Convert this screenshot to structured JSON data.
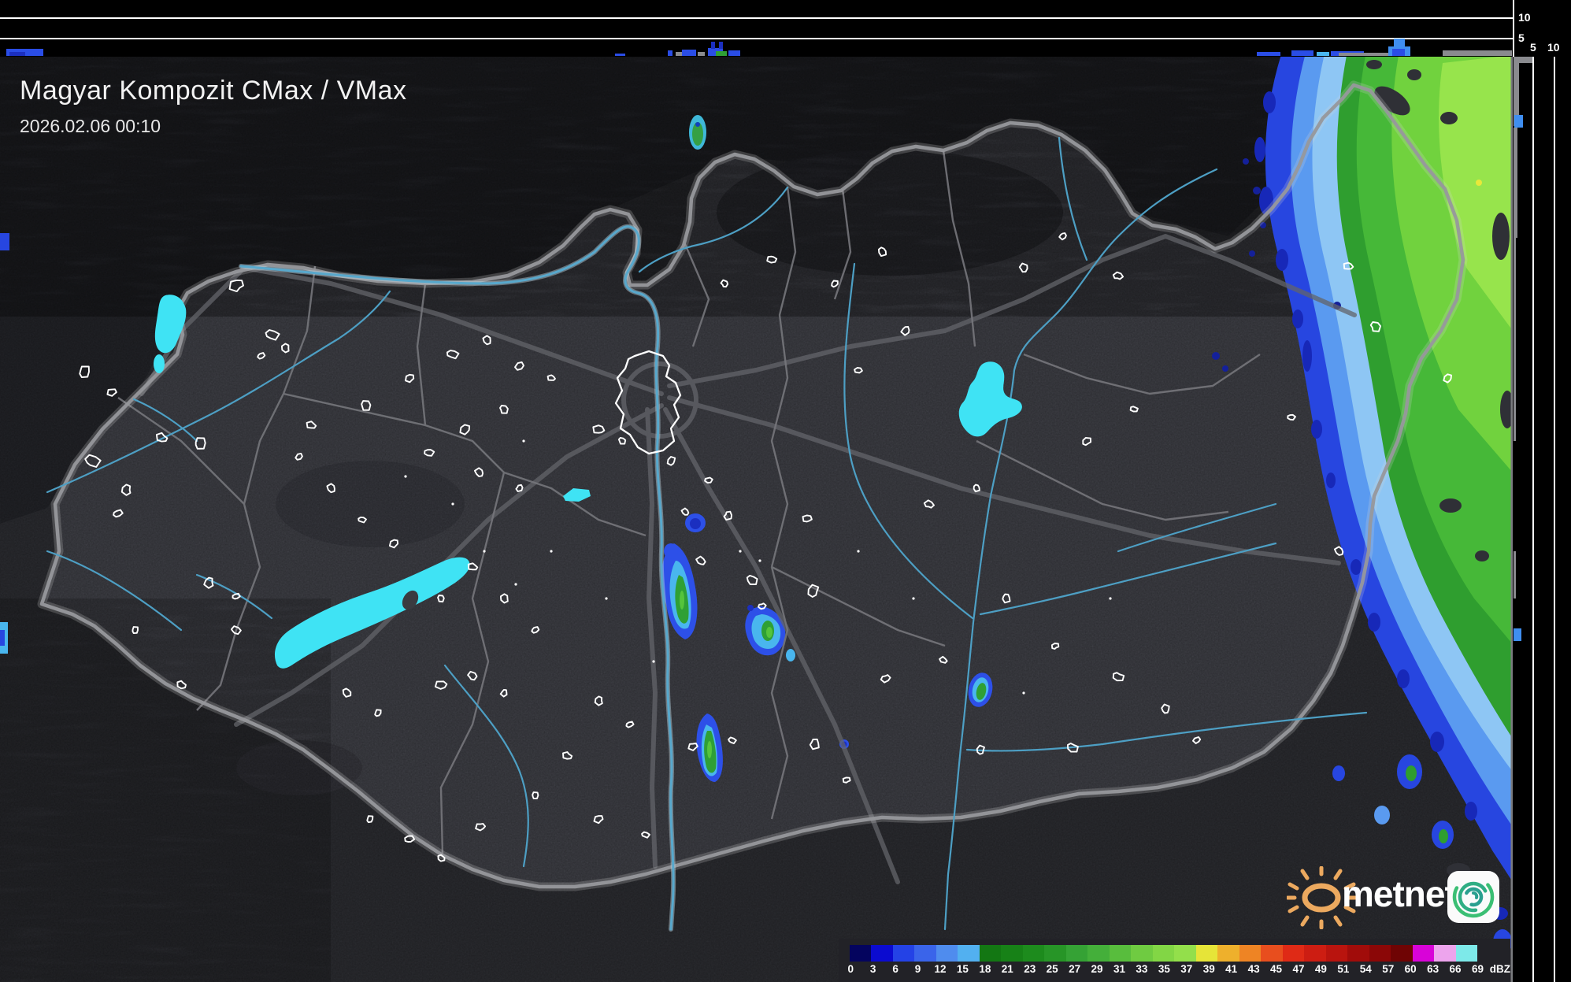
{
  "header": {
    "title": "Magyar Kompozit CMax / VMax",
    "datetime": "2026.02.06 00:10"
  },
  "profile_top": {
    "gridline_10": "10",
    "gridline_5": "5"
  },
  "profile_right": {
    "axis_5": "5",
    "axis_10": "10"
  },
  "colorbar": {
    "unit": "dBZ",
    "stops": [
      {
        "label": "0",
        "color": "#04045e"
      },
      {
        "label": "3",
        "color": "#0b0bd0"
      },
      {
        "label": "6",
        "color": "#2442e6"
      },
      {
        "label": "9",
        "color": "#3a64ea"
      },
      {
        "label": "12",
        "color": "#4f8cee"
      },
      {
        "label": "15",
        "color": "#52b0f0"
      },
      {
        "label": "18",
        "color": "#137713"
      },
      {
        "label": "21",
        "color": "#178117"
      },
      {
        "label": "23",
        "color": "#1d8b1d"
      },
      {
        "label": "25",
        "color": "#279527"
      },
      {
        "label": "27",
        "color": "#35a235"
      },
      {
        "label": "29",
        "color": "#44af3a"
      },
      {
        "label": "31",
        "color": "#58bd3d"
      },
      {
        "label": "33",
        "color": "#6fcb41"
      },
      {
        "label": "35",
        "color": "#82d645"
      },
      {
        "label": "37",
        "color": "#93df4b"
      },
      {
        "label": "39",
        "color": "#e6e438"
      },
      {
        "label": "41",
        "color": "#eeb02c"
      },
      {
        "label": "43",
        "color": "#ee8424"
      },
      {
        "label": "45",
        "color": "#e84e1e"
      },
      {
        "label": "47",
        "color": "#df2a16"
      },
      {
        "label": "49",
        "color": "#cd1d12"
      },
      {
        "label": "51",
        "color": "#b9140e"
      },
      {
        "label": "54",
        "color": "#a10c0a"
      },
      {
        "label": "57",
        "color": "#8b0707"
      },
      {
        "label": "60",
        "color": "#6f0404"
      },
      {
        "label": "63",
        "color": "#d803d8"
      },
      {
        "label": "66",
        "color": "#eda4ed"
      },
      {
        "label": "69",
        "color": "#7de9e9"
      }
    ]
  },
  "logo": {
    "brand": "metnet"
  },
  "map_colors": {
    "lake": "#3fe3f4",
    "river": "#58a8cc",
    "country_border": "#97989c",
    "echo_blue": "#2746e0",
    "echo_green": "#2f9e2f",
    "logo_orange": "#eca95f",
    "logo_spiral": "#2fae84"
  }
}
